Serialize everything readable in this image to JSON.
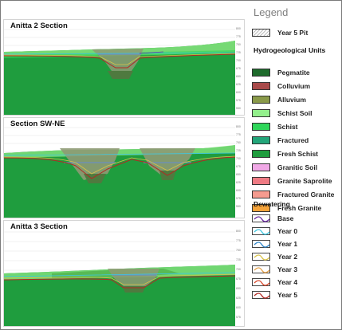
{
  "sections": [
    {
      "title": "Anitta 2 Section"
    },
    {
      "title": "Section SW-NE"
    },
    {
      "title": "Anitta 3 Section"
    }
  ],
  "legend": {
    "title": "Legend",
    "pit": {
      "label": "Year 5 Pit"
    },
    "hydro_heading": "Hydrogeological Units",
    "units": [
      {
        "label": "Pegmatite",
        "color": "#1e6b2c"
      },
      {
        "label": "Colluvium",
        "color": "#a94a4a"
      },
      {
        "label": "Alluvium",
        "color": "#8a9a4a"
      },
      {
        "label": "Schist Soil",
        "color": "#93f08c"
      },
      {
        "label": "Schist",
        "color": "#2fd65a"
      },
      {
        "label": "Fractured",
        "color": "#23a67a"
      },
      {
        "label": "Fresh Schist",
        "color": "#1f9d3e"
      },
      {
        "label": "Granitic Soil",
        "color": "#f0a8e6"
      },
      {
        "label": "Granite Saprolite",
        "color": "#ef7b84"
      },
      {
        "label": "Fractured Granite",
        "color": "#f59b8f"
      },
      {
        "label": "Fresh Granite",
        "color": "#f5a33a"
      }
    ],
    "dewatering_heading": "Dewatering",
    "dewatering": [
      {
        "label": "Base",
        "color": "#6a2aa0"
      },
      {
        "label": "Year 0",
        "color": "#3ec6e0"
      },
      {
        "label": "Year 1",
        "color": "#2f86c9"
      },
      {
        "label": "Year 2",
        "color": "#d8c24a"
      },
      {
        "label": "Year 3",
        "color": "#e5a24a"
      },
      {
        "label": "Year 4",
        "color": "#d9482c"
      },
      {
        "label": "Year 5",
        "color": "#b22a24"
      }
    ]
  }
}
